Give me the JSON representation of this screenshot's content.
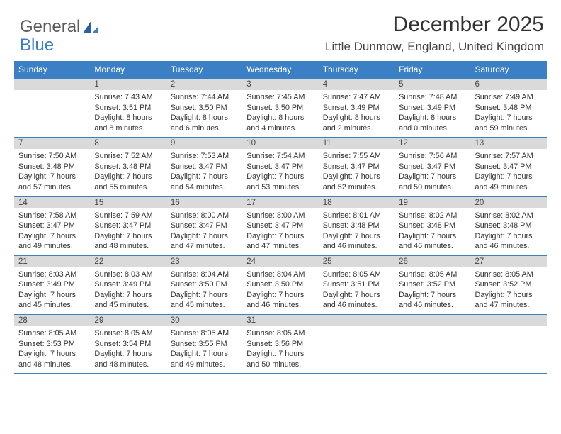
{
  "logo": {
    "text1": "General",
    "text2": "Blue"
  },
  "title": "December 2025",
  "location": "Little Dunmow, England, United Kingdom",
  "colors": {
    "header_bg": "#3b7fc4",
    "header_text": "#ffffff",
    "daynum_bg": "#dadada",
    "rule": "#3b7fc4",
    "logo_gray": "#5a5a5a",
    "logo_blue": "#3b7fc4"
  },
  "day_headers": [
    "Sunday",
    "Monday",
    "Tuesday",
    "Wednesday",
    "Thursday",
    "Friday",
    "Saturday"
  ],
  "weeks": [
    {
      "nums": [
        "",
        "1",
        "2",
        "3",
        "4",
        "5",
        "6"
      ],
      "cells": [
        {},
        {
          "sunrise": "Sunrise: 7:43 AM",
          "sunset": "Sunset: 3:51 PM",
          "daylight": "Daylight: 8 hours and 8 minutes."
        },
        {
          "sunrise": "Sunrise: 7:44 AM",
          "sunset": "Sunset: 3:50 PM",
          "daylight": "Daylight: 8 hours and 6 minutes."
        },
        {
          "sunrise": "Sunrise: 7:45 AM",
          "sunset": "Sunset: 3:50 PM",
          "daylight": "Daylight: 8 hours and 4 minutes."
        },
        {
          "sunrise": "Sunrise: 7:47 AM",
          "sunset": "Sunset: 3:49 PM",
          "daylight": "Daylight: 8 hours and 2 minutes."
        },
        {
          "sunrise": "Sunrise: 7:48 AM",
          "sunset": "Sunset: 3:49 PM",
          "daylight": "Daylight: 8 hours and 0 minutes."
        },
        {
          "sunrise": "Sunrise: 7:49 AM",
          "sunset": "Sunset: 3:48 PM",
          "daylight": "Daylight: 7 hours and 59 minutes."
        }
      ]
    },
    {
      "nums": [
        "7",
        "8",
        "9",
        "10",
        "11",
        "12",
        "13"
      ],
      "cells": [
        {
          "sunrise": "Sunrise: 7:50 AM",
          "sunset": "Sunset: 3:48 PM",
          "daylight": "Daylight: 7 hours and 57 minutes."
        },
        {
          "sunrise": "Sunrise: 7:52 AM",
          "sunset": "Sunset: 3:48 PM",
          "daylight": "Daylight: 7 hours and 55 minutes."
        },
        {
          "sunrise": "Sunrise: 7:53 AM",
          "sunset": "Sunset: 3:47 PM",
          "daylight": "Daylight: 7 hours and 54 minutes."
        },
        {
          "sunrise": "Sunrise: 7:54 AM",
          "sunset": "Sunset: 3:47 PM",
          "daylight": "Daylight: 7 hours and 53 minutes."
        },
        {
          "sunrise": "Sunrise: 7:55 AM",
          "sunset": "Sunset: 3:47 PM",
          "daylight": "Daylight: 7 hours and 52 minutes."
        },
        {
          "sunrise": "Sunrise: 7:56 AM",
          "sunset": "Sunset: 3:47 PM",
          "daylight": "Daylight: 7 hours and 50 minutes."
        },
        {
          "sunrise": "Sunrise: 7:57 AM",
          "sunset": "Sunset: 3:47 PM",
          "daylight": "Daylight: 7 hours and 49 minutes."
        }
      ]
    },
    {
      "nums": [
        "14",
        "15",
        "16",
        "17",
        "18",
        "19",
        "20"
      ],
      "cells": [
        {
          "sunrise": "Sunrise: 7:58 AM",
          "sunset": "Sunset: 3:47 PM",
          "daylight": "Daylight: 7 hours and 49 minutes."
        },
        {
          "sunrise": "Sunrise: 7:59 AM",
          "sunset": "Sunset: 3:47 PM",
          "daylight": "Daylight: 7 hours and 48 minutes."
        },
        {
          "sunrise": "Sunrise: 8:00 AM",
          "sunset": "Sunset: 3:47 PM",
          "daylight": "Daylight: 7 hours and 47 minutes."
        },
        {
          "sunrise": "Sunrise: 8:00 AM",
          "sunset": "Sunset: 3:47 PM",
          "daylight": "Daylight: 7 hours and 47 minutes."
        },
        {
          "sunrise": "Sunrise: 8:01 AM",
          "sunset": "Sunset: 3:48 PM",
          "daylight": "Daylight: 7 hours and 46 minutes."
        },
        {
          "sunrise": "Sunrise: 8:02 AM",
          "sunset": "Sunset: 3:48 PM",
          "daylight": "Daylight: 7 hours and 46 minutes."
        },
        {
          "sunrise": "Sunrise: 8:02 AM",
          "sunset": "Sunset: 3:48 PM",
          "daylight": "Daylight: 7 hours and 46 minutes."
        }
      ]
    },
    {
      "nums": [
        "21",
        "22",
        "23",
        "24",
        "25",
        "26",
        "27"
      ],
      "cells": [
        {
          "sunrise": "Sunrise: 8:03 AM",
          "sunset": "Sunset: 3:49 PM",
          "daylight": "Daylight: 7 hours and 45 minutes."
        },
        {
          "sunrise": "Sunrise: 8:03 AM",
          "sunset": "Sunset: 3:49 PM",
          "daylight": "Daylight: 7 hours and 45 minutes."
        },
        {
          "sunrise": "Sunrise: 8:04 AM",
          "sunset": "Sunset: 3:50 PM",
          "daylight": "Daylight: 7 hours and 45 minutes."
        },
        {
          "sunrise": "Sunrise: 8:04 AM",
          "sunset": "Sunset: 3:50 PM",
          "daylight": "Daylight: 7 hours and 46 minutes."
        },
        {
          "sunrise": "Sunrise: 8:05 AM",
          "sunset": "Sunset: 3:51 PM",
          "daylight": "Daylight: 7 hours and 46 minutes."
        },
        {
          "sunrise": "Sunrise: 8:05 AM",
          "sunset": "Sunset: 3:52 PM",
          "daylight": "Daylight: 7 hours and 46 minutes."
        },
        {
          "sunrise": "Sunrise: 8:05 AM",
          "sunset": "Sunset: 3:52 PM",
          "daylight": "Daylight: 7 hours and 47 minutes."
        }
      ]
    },
    {
      "nums": [
        "28",
        "29",
        "30",
        "31",
        "",
        "",
        ""
      ],
      "cells": [
        {
          "sunrise": "Sunrise: 8:05 AM",
          "sunset": "Sunset: 3:53 PM",
          "daylight": "Daylight: 7 hours and 48 minutes."
        },
        {
          "sunrise": "Sunrise: 8:05 AM",
          "sunset": "Sunset: 3:54 PM",
          "daylight": "Daylight: 7 hours and 48 minutes."
        },
        {
          "sunrise": "Sunrise: 8:05 AM",
          "sunset": "Sunset: 3:55 PM",
          "daylight": "Daylight: 7 hours and 49 minutes."
        },
        {
          "sunrise": "Sunrise: 8:05 AM",
          "sunset": "Sunset: 3:56 PM",
          "daylight": "Daylight: 7 hours and 50 minutes."
        },
        {},
        {},
        {}
      ]
    }
  ]
}
